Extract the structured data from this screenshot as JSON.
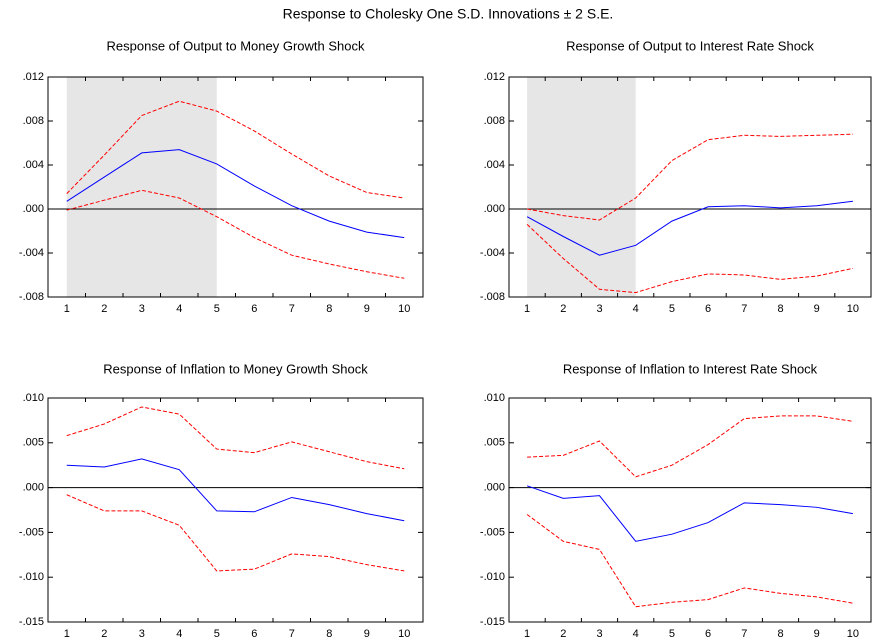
{
  "title": "Response to Cholesky One S.D. Innovations ± 2 S.E.",
  "chart_data": [
    {
      "type": "line",
      "title": "Response of Output to Money Growth Shock",
      "categories": [
        "1",
        "2",
        "3",
        "4",
        "5",
        "6",
        "7",
        "8",
        "9",
        "10"
      ],
      "ylim": [
        -0.008,
        0.012
      ],
      "yticks": [
        {
          "value": 0.012,
          "label": ".012"
        },
        {
          "value": 0.008,
          "label": ".008"
        },
        {
          "value": 0.004,
          "label": ".004"
        },
        {
          "value": 0,
          "label": ".000"
        },
        {
          "value": -0.004,
          "label": "-.004"
        },
        {
          "value": -0.008,
          "label": "-.008"
        }
      ],
      "shaded_range": [
        1,
        5
      ],
      "zero_line": true,
      "series": [
        {
          "color": "#0000ff",
          "dashed": false,
          "values": [
            0.0007,
            0.0029,
            0.0051,
            0.0054,
            0.0041,
            0.0021,
            0.0003,
            -0.0011,
            -0.0021,
            -0.0026
          ]
        },
        {
          "color": "#ff0000",
          "dashed": true,
          "values": [
            0.0014,
            0.0049,
            0.0085,
            0.0098,
            0.0089,
            0.0071,
            0.005,
            0.003,
            0.0015,
            0.001
          ]
        },
        {
          "color": "#ff0000",
          "dashed": true,
          "values": [
            -0.0001,
            0.0008,
            0.0017,
            0.001,
            -0.0007,
            -0.0026,
            -0.0042,
            -0.005,
            -0.0057,
            -0.0063
          ]
        }
      ]
    },
    {
      "type": "line",
      "title": "Response of Output to Interest Rate Shock",
      "categories": [
        "1",
        "2",
        "3",
        "4",
        "5",
        "6",
        "7",
        "8",
        "9",
        "10"
      ],
      "ylim": [
        -0.008,
        0.012
      ],
      "yticks": [
        {
          "value": 0.012,
          "label": ".012"
        },
        {
          "value": 0.008,
          "label": ".008"
        },
        {
          "value": 0.004,
          "label": ".004"
        },
        {
          "value": 0,
          "label": ".000"
        },
        {
          "value": -0.004,
          "label": "-.004"
        },
        {
          "value": -0.008,
          "label": "-.008"
        }
      ],
      "shaded_range": [
        1,
        4
      ],
      "zero_line": true,
      "series": [
        {
          "color": "#0000ff",
          "dashed": false,
          "values": [
            -0.0007,
            -0.0025,
            -0.0042,
            -0.0033,
            -0.0011,
            0.0002,
            0.0003,
            0.0001,
            0.0003,
            0.0007
          ]
        },
        {
          "color": "#ff0000",
          "dashed": true,
          "values": [
            0.0,
            -0.0006,
            -0.001,
            0.001,
            0.0044,
            0.0063,
            0.0067,
            0.0066,
            0.0067,
            0.0068
          ]
        },
        {
          "color": "#ff0000",
          "dashed": true,
          "values": [
            -0.0014,
            -0.0045,
            -0.0073,
            -0.0076,
            -0.0066,
            -0.0059,
            -0.006,
            -0.0064,
            -0.0061,
            -0.0054
          ]
        }
      ]
    },
    {
      "type": "line",
      "title": "Response of Inflation to Money Growth Shock",
      "categories": [
        "1",
        "2",
        "3",
        "4",
        "5",
        "6",
        "7",
        "8",
        "9",
        "10"
      ],
      "ylim": [
        -0.015,
        0.01
      ],
      "yticks": [
        {
          "value": 0.01,
          "label": ".010"
        },
        {
          "value": 0.005,
          "label": ".005"
        },
        {
          "value": 0,
          "label": ".000"
        },
        {
          "value": -0.005,
          "label": "-.005"
        },
        {
          "value": -0.01,
          "label": "-.010"
        },
        {
          "value": -0.015,
          "label": "-.015"
        }
      ],
      "zero_line": true,
      "series": [
        {
          "color": "#0000ff",
          "dashed": false,
          "values": [
            0.0025,
            0.0023,
            0.0032,
            0.002,
            -0.0026,
            -0.0027,
            -0.0011,
            -0.0019,
            -0.0029,
            -0.0037
          ]
        },
        {
          "color": "#ff0000",
          "dashed": true,
          "values": [
            0.0058,
            0.0071,
            0.009,
            0.0082,
            0.0043,
            0.0039,
            0.0051,
            0.004,
            0.0029,
            0.0021
          ]
        },
        {
          "color": "#ff0000",
          "dashed": true,
          "values": [
            -0.0008,
            -0.0026,
            -0.0026,
            -0.0042,
            -0.0093,
            -0.0091,
            -0.0074,
            -0.0077,
            -0.0086,
            -0.0093
          ]
        }
      ]
    },
    {
      "type": "line",
      "title": "Response of Inflation to Interest Rate Shock",
      "categories": [
        "1",
        "2",
        "3",
        "4",
        "5",
        "6",
        "7",
        "8",
        "9",
        "10"
      ],
      "ylim": [
        -0.015,
        0.01
      ],
      "yticks": [
        {
          "value": 0.01,
          "label": ".010"
        },
        {
          "value": 0.005,
          "label": ".005"
        },
        {
          "value": 0,
          "label": ".000"
        },
        {
          "value": -0.005,
          "label": "-.005"
        },
        {
          "value": -0.01,
          "label": "-.010"
        },
        {
          "value": -0.015,
          "label": "-.015"
        }
      ],
      "zero_line": true,
      "series": [
        {
          "color": "#0000ff",
          "dashed": false,
          "values": [
            0.0002,
            -0.0012,
            -0.0009,
            -0.006,
            -0.0052,
            -0.0039,
            -0.0017,
            -0.0019,
            -0.0022,
            -0.0029
          ]
        },
        {
          "color": "#ff0000",
          "dashed": true,
          "values": [
            0.0034,
            0.0036,
            0.0052,
            0.0012,
            0.0025,
            0.0048,
            0.0077,
            0.008,
            0.008,
            0.0074
          ]
        },
        {
          "color": "#ff0000",
          "dashed": true,
          "values": [
            -0.003,
            -0.006,
            -0.0069,
            -0.0133,
            -0.0128,
            -0.0125,
            -0.0112,
            -0.0118,
            -0.0122,
            -0.0129
          ]
        }
      ]
    }
  ]
}
